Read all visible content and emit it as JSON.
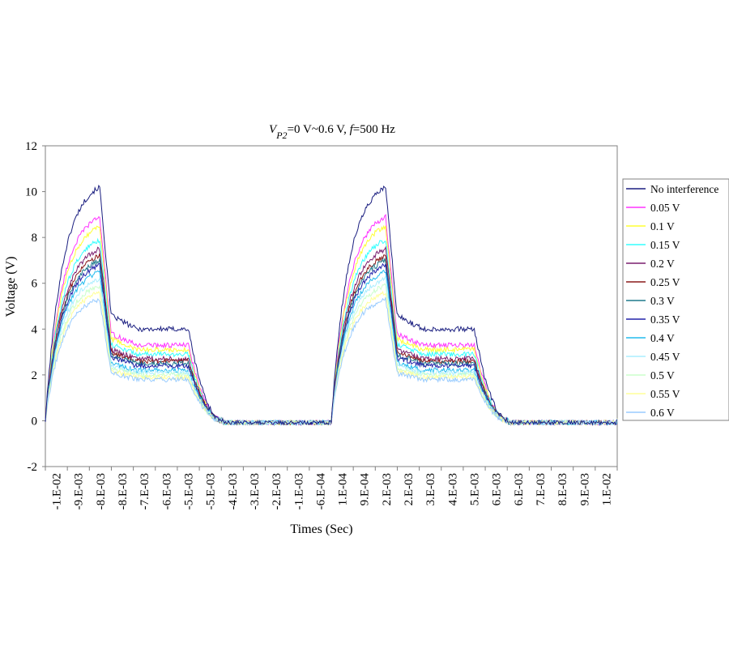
{
  "chart_data": {
    "type": "line",
    "title": {
      "v_symbol": "V",
      "v_subscript": "P2",
      "range_text": "=0 V~0.6 V, ",
      "f_symbol": "f",
      "freq_text": "=500 Hz"
    },
    "xlabel": "Times (Sec)",
    "ylabel": "Voltage (V)",
    "ylim": [
      -2,
      12
    ],
    "yticks": [
      -2,
      0,
      2,
      4,
      6,
      8,
      10,
      12
    ],
    "xlim": [
      -0.01,
      0.01
    ],
    "xtick_labels": [
      "-1.E-02",
      "-9.E-03",
      "-8.E-03",
      "-8.E-03",
      "-7.E-03",
      "-6.E-03",
      "-5.E-03",
      "-5.E-03",
      "-4.E-03",
      "-3.E-03",
      "-2.E-03",
      "-1.E-03",
      "-6.E-04",
      "1.E-04",
      "9.E-04",
      "2.E-03",
      "2.E-03",
      "3.E-03",
      "4.E-03",
      "5.E-03",
      "6.E-03",
      "6.E-03",
      "7.E-03",
      "8.E-03",
      "9.E-03",
      "1.E-02"
    ],
    "grid": false,
    "legend_position": "right",
    "series": [
      {
        "name": "No interference",
        "color": "#1b1f80",
        "peak": 10.2,
        "plateau": 4.0
      },
      {
        "name": "0.05 V",
        "color": "#ff33ff",
        "peak": 8.9,
        "plateau": 3.3
      },
      {
        "name": "0.1 V",
        "color": "#ffff33",
        "peak": 8.5,
        "plateau": 3.1
      },
      {
        "name": "0.15 V",
        "color": "#33ffff",
        "peak": 7.9,
        "plateau": 2.9
      },
      {
        "name": "0.2 V",
        "color": "#7a1f6f",
        "peak": 7.5,
        "plateau": 2.7
      },
      {
        "name": "0.25 V",
        "color": "#8a1a1a",
        "peak": 7.2,
        "plateau": 2.6
      },
      {
        "name": "0.3 V",
        "color": "#1f7a8c",
        "peak": 7.0,
        "plateau": 2.5
      },
      {
        "name": "0.35 V",
        "color": "#2222aa",
        "peak": 6.8,
        "plateau": 2.4
      },
      {
        "name": "0.4 V",
        "color": "#22bbee",
        "peak": 6.5,
        "plateau": 2.2
      },
      {
        "name": "0.45 V",
        "color": "#aaeeff",
        "peak": 6.2,
        "plateau": 2.1
      },
      {
        "name": "0.5 V",
        "color": "#ccffcc",
        "peak": 5.9,
        "plateau": 2.0
      },
      {
        "name": "0.55 V",
        "color": "#ffff99",
        "peak": 5.6,
        "plateau": 1.9
      },
      {
        "name": "0.6 V",
        "color": "#99ccff",
        "peak": 5.3,
        "plateau": 1.8
      }
    ]
  }
}
